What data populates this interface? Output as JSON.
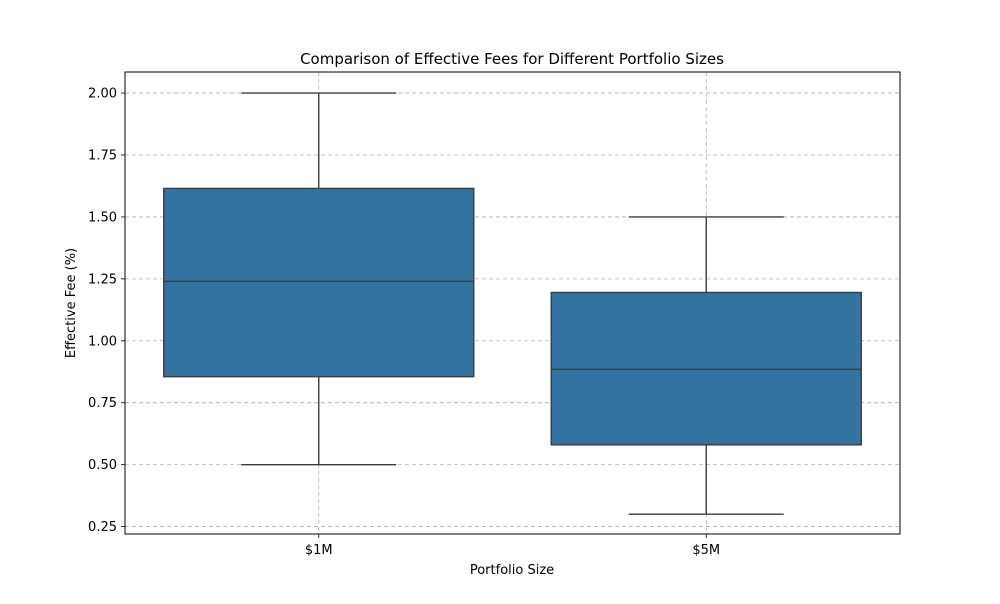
{
  "chart_data": {
    "type": "box",
    "title": "Comparison of Effective Fees for Different Portfolio Sizes",
    "xlabel": "Portfolio Size",
    "ylabel": "Effective Fee (%)",
    "categories": [
      "$1M",
      "$5M"
    ],
    "boxes": [
      {
        "category": "$1M",
        "whisker_low": 0.5,
        "q1": 0.855,
        "median": 1.24,
        "q3": 1.615,
        "whisker_high": 2.0
      },
      {
        "category": "$5M",
        "whisker_low": 0.3,
        "q1": 0.58,
        "median": 0.885,
        "q3": 1.195,
        "whisker_high": 1.5
      }
    ],
    "ylim": [
      0.22,
      2.085
    ],
    "yticks": [
      0.25,
      0.5,
      0.75,
      1.0,
      1.25,
      1.5,
      1.75,
      2.0
    ],
    "ytick_labels": [
      "0.25",
      "0.50",
      "0.75",
      "1.00",
      "1.25",
      "1.50",
      "1.75",
      "2.00"
    ],
    "grid": true,
    "box_color": "#3274a1",
    "line_color": "#3d3d3d"
  }
}
